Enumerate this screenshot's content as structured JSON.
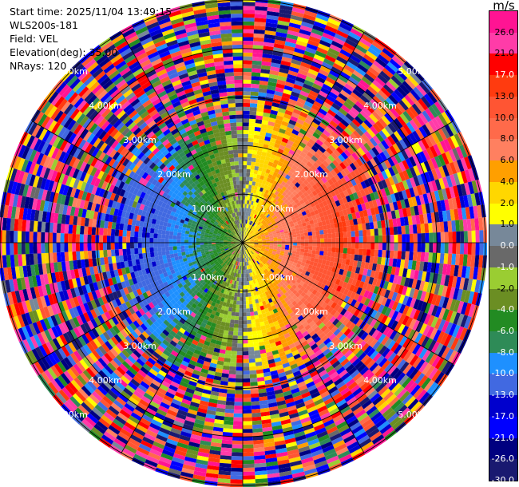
{
  "info": {
    "start_time": "Start time: 2025/11/04 13:49:15",
    "instrument": "WLS200s-181",
    "field": "Field: VEL",
    "elevation": "Elevation(deg): 35.00",
    "nrays": "NRays: 120"
  },
  "colorbar": {
    "unit": "m/s",
    "segments": [
      {
        "color": "#ff1493",
        "label": "26.0"
      },
      {
        "color": "#ff3ca8",
        "label": "21.0"
      },
      {
        "color": "#ff0000",
        "label": "17.0"
      },
      {
        "color": "#ff3b0f",
        "label": "13.0"
      },
      {
        "color": "#ff5533",
        "label": "10.0"
      },
      {
        "color": "#ff6a4a",
        "label": "8.0"
      },
      {
        "color": "#ff8060",
        "label": "6.0"
      },
      {
        "color": "#ff9f00",
        "label": "4.0"
      },
      {
        "color": "#ffd700",
        "label": "2.0"
      },
      {
        "color": "#ffff00",
        "label": "1.0"
      },
      {
        "color": "#778899",
        "label": "0.0"
      },
      {
        "color": "#696969",
        "label": "-1.0"
      },
      {
        "color": "#9acd32",
        "label": "-2.0"
      },
      {
        "color": "#6b8e23",
        "label": "-4.0"
      },
      {
        "color": "#228b22",
        "label": "-6.0"
      },
      {
        "color": "#2e8b57",
        "label": "-8.0"
      },
      {
        "color": "#1e90ff",
        "label": "-10.0"
      },
      {
        "color": "#4169e1",
        "label": "-13.0"
      },
      {
        "color": "#0000cd",
        "label": "-17.0"
      },
      {
        "color": "#0000ff",
        "label": "-21.0"
      },
      {
        "color": "#000080",
        "label": "-26.0"
      },
      {
        "color": "#191970",
        "label": "-30.0"
      }
    ]
  },
  "chart_data": {
    "type": "heatmap",
    "projection": "polar-ppi",
    "field": "VEL",
    "units": "m/s",
    "nrays": 120,
    "elevation_deg": 35.0,
    "vmin": -30.0,
    "vmax": 30.0,
    "max_range_km": 5.0,
    "range_rings_km": [
      1.0,
      2.0,
      3.0,
      4.0,
      5.0
    ],
    "ring_labels": [
      "1.00km",
      "2.00km",
      "3.00km",
      "4.00km",
      "5.00km"
    ],
    "spokes_deg": [
      0,
      30,
      60,
      90,
      120,
      150,
      180,
      210,
      240,
      270,
      300,
      330
    ],
    "pattern": {
      "positive_velocity_azimuth_deg": 90,
      "peak_velocity_ms": 13.0,
      "coherent_range_km": 2.0,
      "noise_beyond_km": 3.0
    }
  }
}
